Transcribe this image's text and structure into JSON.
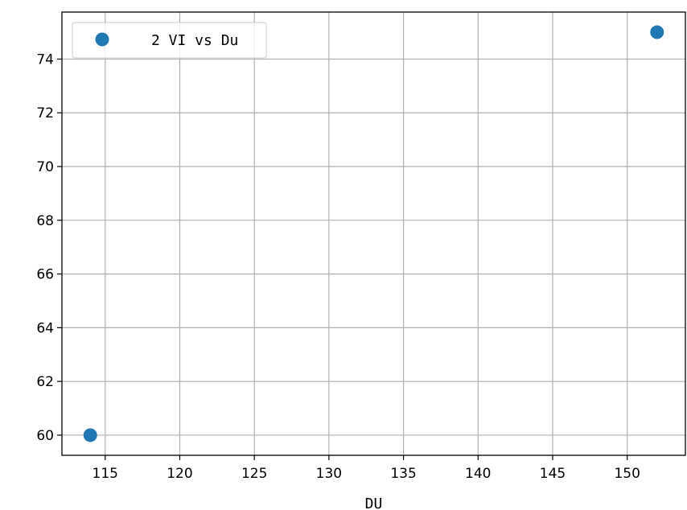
{
  "chart_data": {
    "type": "scatter",
    "title": "",
    "xlabel": "DU",
    "ylabel": "",
    "xlim": [
      112.1,
      153.9
    ],
    "ylim": [
      59.25,
      75.75
    ],
    "xticks": [
      115,
      120,
      125,
      130,
      135,
      140,
      145,
      150
    ],
    "yticks": [
      60,
      62,
      64,
      66,
      68,
      70,
      72,
      74
    ],
    "grid": true,
    "legend_position": "top-left",
    "series": [
      {
        "name": "2 VI vs Du",
        "color": "#1f77b4",
        "x": [
          114,
          152
        ],
        "y": [
          60,
          75
        ]
      }
    ]
  }
}
